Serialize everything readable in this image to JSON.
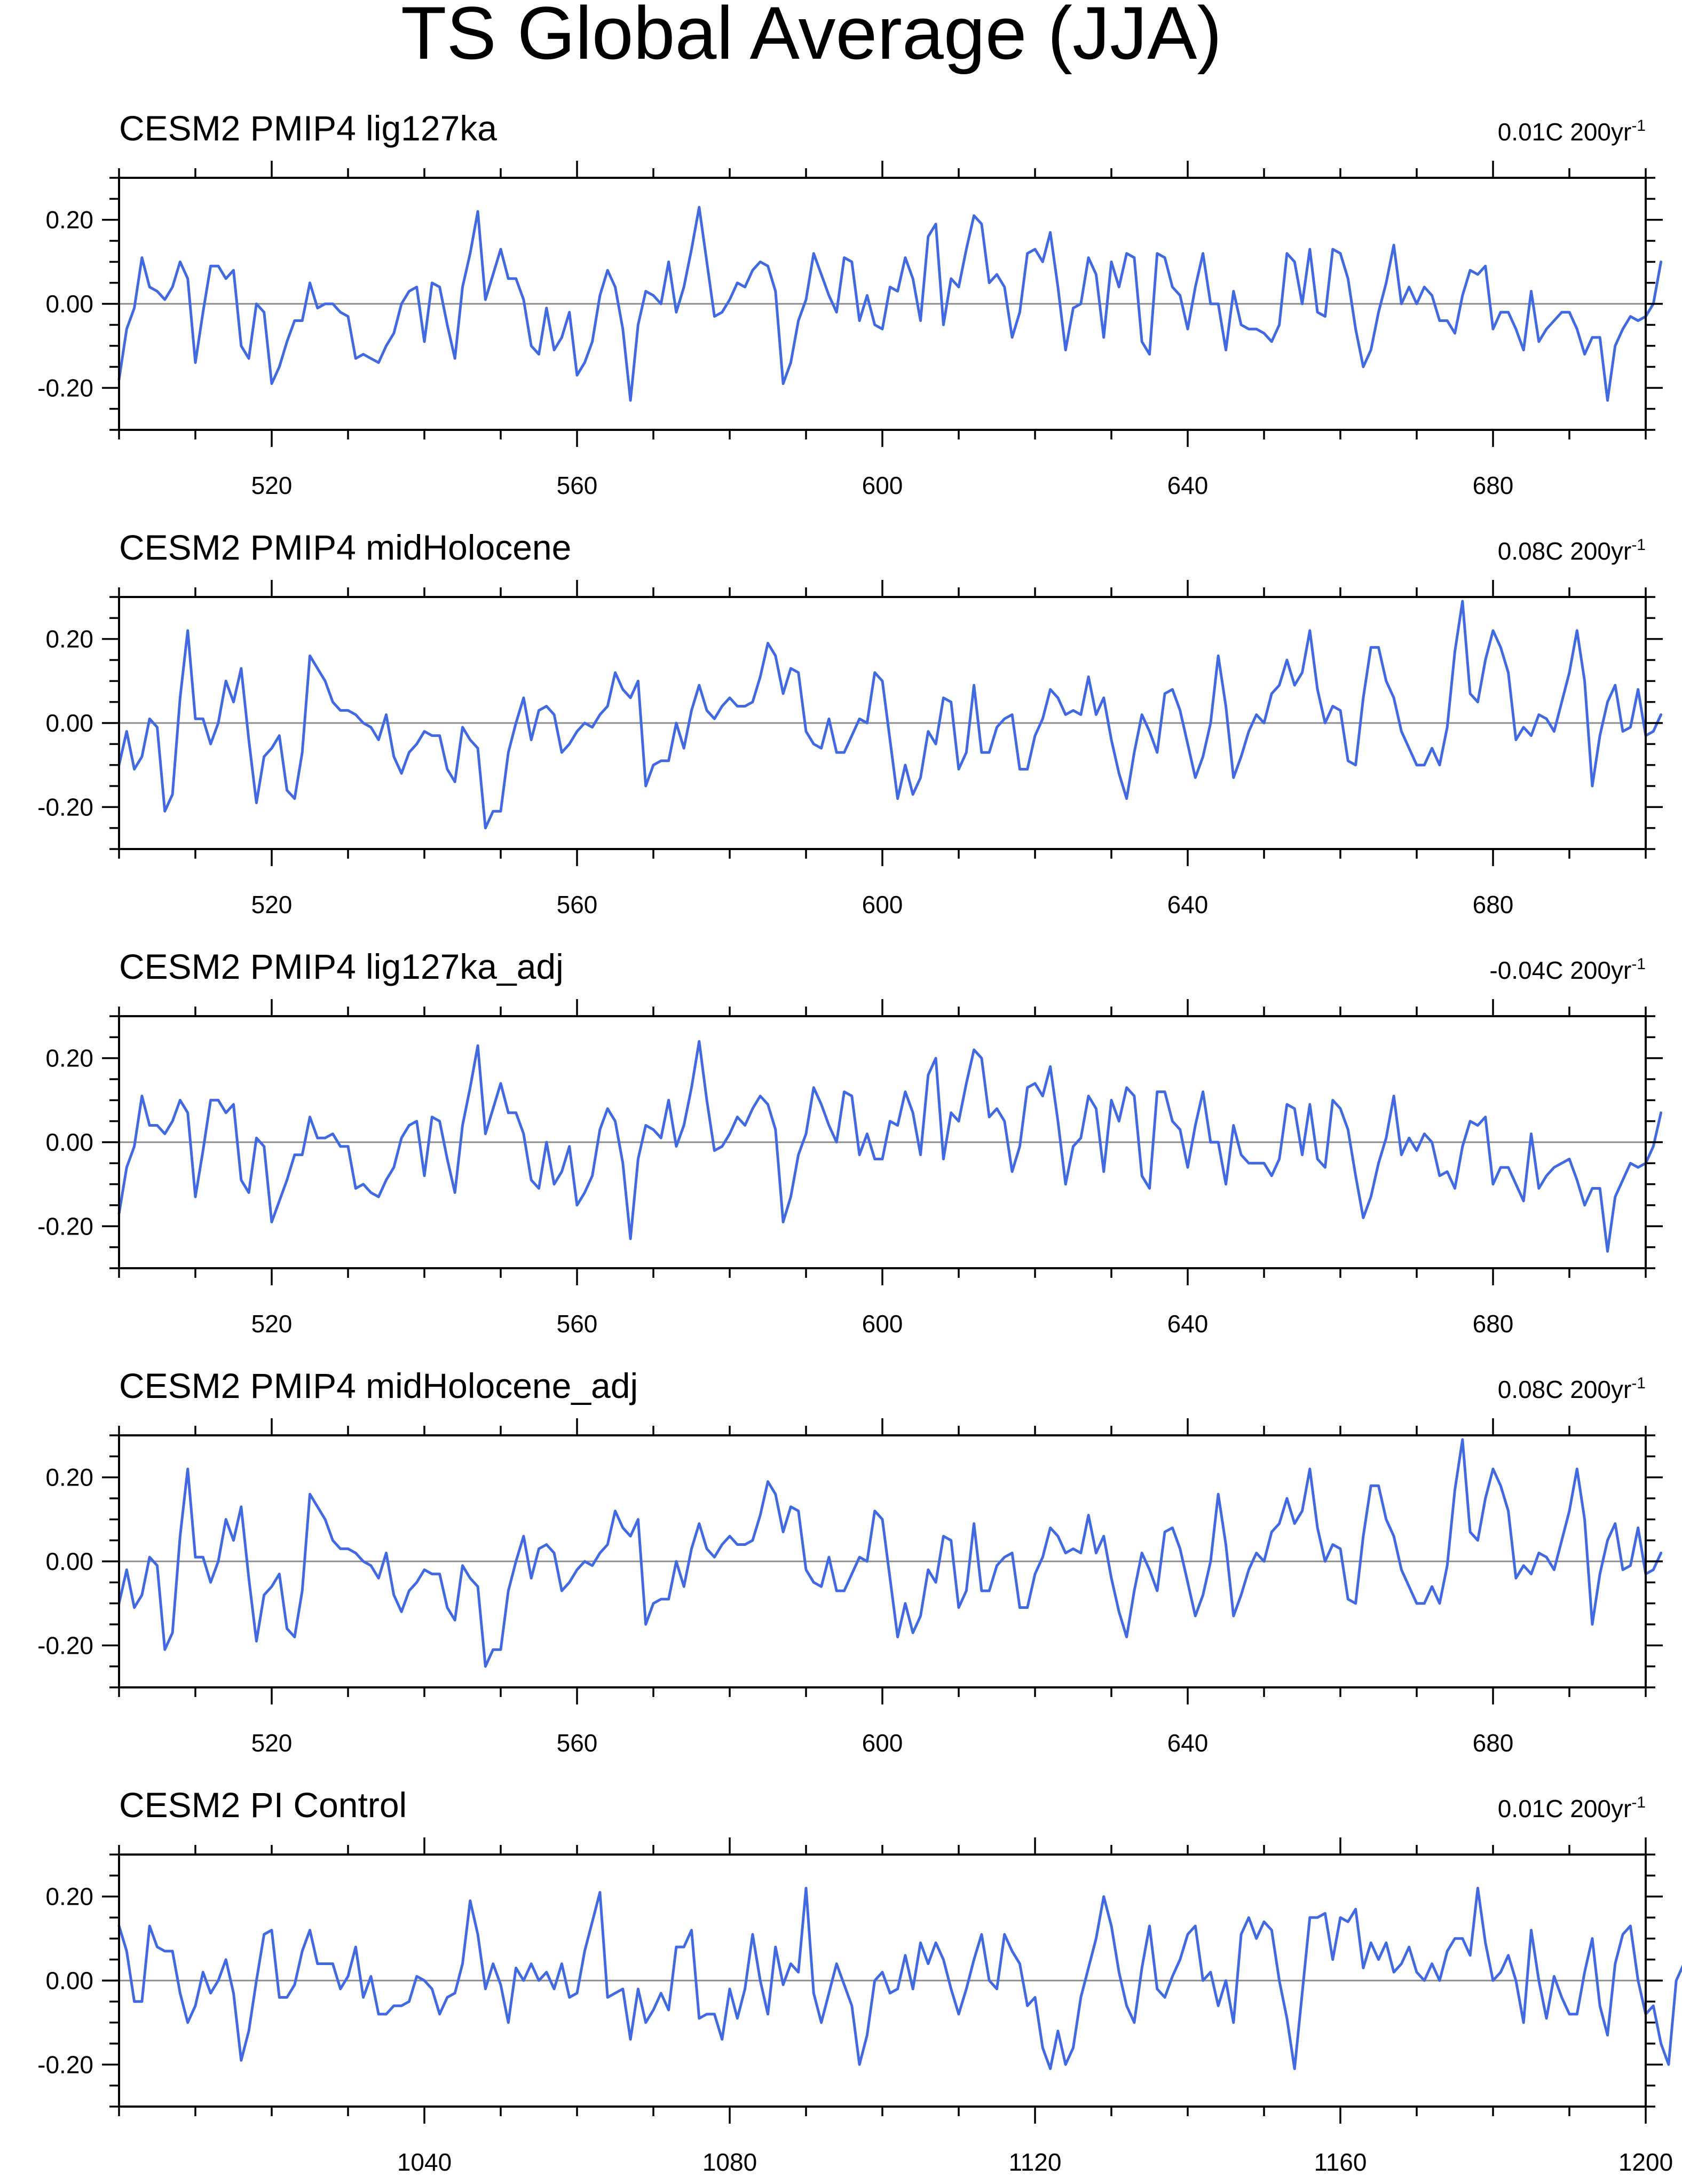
{
  "figure": {
    "title": "TS Global Average (JJA)"
  },
  "style": {
    "line_color": "#4169e1",
    "zero_line_color": "#8c8c8c"
  },
  "chart_data": [
    {
      "type": "line",
      "title": "CESM2 PMIP4 lig127ka",
      "trend_label": "0.01C 200yr",
      "trend_superscript": "-1",
      "xlim": [
        500,
        700
      ],
      "ylim": [
        -0.3,
        0.3
      ],
      "x_ticks": [
        520,
        560,
        600,
        640,
        680
      ],
      "y_ticks": [
        -0.2,
        0.0,
        0.2
      ],
      "y_tick_labels": [
        "-0.20",
        "0.00",
        "0.20"
      ],
      "x": {
        "start": 500,
        "step": 1,
        "count": 201
      },
      "values": [
        -0.18,
        -0.06,
        -0.01,
        0.11,
        0.04,
        0.03,
        0.01,
        0.04,
        0.1,
        0.06,
        -0.14,
        -0.02,
        0.09,
        0.09,
        0.06,
        0.08,
        -0.1,
        -0.13,
        0.0,
        -0.02,
        -0.19,
        -0.15,
        -0.09,
        -0.04,
        -0.04,
        0.05,
        -0.01,
        0.0,
        0.0,
        -0.02,
        -0.03,
        -0.13,
        -0.12,
        -0.13,
        -0.14,
        -0.1,
        -0.07,
        0.0,
        0.03,
        0.04,
        -0.09,
        0.05,
        0.04,
        -0.05,
        -0.13,
        0.04,
        0.12,
        0.22,
        0.01,
        0.07,
        0.13,
        0.06,
        0.06,
        0.01,
        -0.1,
        -0.12,
        -0.01,
        -0.11,
        -0.08,
        -0.02,
        -0.17,
        -0.14,
        -0.09,
        0.02,
        0.08,
        0.04,
        -0.06,
        -0.23,
        -0.05,
        0.03,
        0.02,
        0.0,
        0.1,
        -0.02,
        0.04,
        0.13,
        0.23,
        0.1,
        -0.03,
        -0.02,
        0.01,
        0.05,
        0.04,
        0.08,
        0.1,
        0.09,
        0.03,
        -0.19,
        -0.14,
        -0.04,
        0.01,
        0.12,
        0.07,
        0.02,
        -0.02,
        0.11,
        0.1,
        -0.04,
        0.02,
        -0.05,
        -0.06,
        0.04,
        0.03,
        0.11,
        0.06,
        -0.04,
        0.16,
        0.19,
        -0.05,
        0.06,
        0.04,
        0.13,
        0.21,
        0.19,
        0.05,
        0.07,
        0.04,
        -0.08,
        -0.02,
        0.12,
        0.13,
        0.1,
        0.17,
        0.04,
        -0.11,
        -0.01,
        0.0,
        0.11,
        0.07,
        -0.08,
        0.1,
        0.04,
        0.12,
        0.11,
        -0.09,
        -0.12,
        0.12,
        0.11,
        0.04,
        0.02,
        -0.06,
        0.04,
        0.12,
        0.0,
        0.0,
        -0.11,
        0.03,
        -0.05,
        -0.06,
        -0.06,
        -0.07,
        -0.09,
        -0.05,
        0.12,
        0.1,
        0.0,
        0.13,
        -0.02,
        -0.03,
        0.13,
        0.12,
        0.06,
        -0.06,
        -0.15,
        -0.11,
        -0.02,
        0.05,
        0.14,
        0.0,
        0.04,
        0.0,
        0.04,
        0.02,
        -0.04,
        -0.04,
        -0.07,
        0.02,
        0.08,
        0.07,
        0.09,
        -0.06,
        -0.02,
        -0.02,
        -0.06,
        -0.11,
        0.03,
        -0.09,
        -0.06,
        -0.04,
        -0.02,
        -0.02,
        -0.06,
        -0.12,
        -0.08,
        -0.08,
        -0.23,
        -0.1,
        -0.06,
        -0.03,
        -0.04,
        -0.03,
        0.0,
        0.1
      ],
      "grid": false,
      "legend": "none"
    },
    {
      "type": "line",
      "title": "CESM2 PMIP4 midHolocene",
      "trend_label": "0.08C 200yr",
      "trend_superscript": "-1",
      "xlim": [
        500,
        700
      ],
      "ylim": [
        -0.3,
        0.3
      ],
      "x_ticks": [
        520,
        560,
        600,
        640,
        680
      ],
      "y_ticks": [
        -0.2,
        0.0,
        0.2
      ],
      "y_tick_labels": [
        "-0.20",
        "0.00",
        "0.20"
      ],
      "x": {
        "start": 500,
        "step": 1,
        "count": 201
      },
      "values": [
        -0.1,
        -0.02,
        -0.11,
        -0.08,
        0.01,
        -0.01,
        -0.21,
        -0.17,
        0.06,
        0.22,
        0.01,
        0.01,
        -0.05,
        0.0,
        0.1,
        0.05,
        0.13,
        -0.04,
        -0.19,
        -0.08,
        -0.06,
        -0.03,
        -0.16,
        -0.18,
        -0.07,
        0.16,
        0.13,
        0.1,
        0.05,
        0.03,
        0.03,
        0.02,
        0.0,
        -0.01,
        -0.04,
        0.02,
        -0.08,
        -0.12,
        -0.07,
        -0.05,
        -0.02,
        -0.03,
        -0.03,
        -0.11,
        -0.14,
        -0.01,
        -0.04,
        -0.06,
        -0.25,
        -0.21,
        -0.21,
        -0.07,
        0.0,
        0.06,
        -0.04,
        0.03,
        0.04,
        0.02,
        -0.07,
        -0.05,
        -0.02,
        0.0,
        -0.01,
        0.02,
        0.04,
        0.12,
        0.08,
        0.06,
        0.1,
        -0.15,
        -0.1,
        -0.09,
        -0.09,
        0.0,
        -0.06,
        0.03,
        0.09,
        0.03,
        0.01,
        0.04,
        0.06,
        0.04,
        0.04,
        0.05,
        0.11,
        0.19,
        0.16,
        0.07,
        0.13,
        0.12,
        -0.02,
        -0.05,
        -0.06,
        0.01,
        -0.07,
        -0.07,
        -0.03,
        0.01,
        0.0,
        0.12,
        0.1,
        -0.04,
        -0.18,
        -0.1,
        -0.17,
        -0.13,
        -0.02,
        -0.05,
        0.06,
        0.05,
        -0.11,
        -0.07,
        0.09,
        -0.07,
        -0.07,
        -0.01,
        0.01,
        0.02,
        -0.11,
        -0.11,
        -0.03,
        0.01,
        0.08,
        0.06,
        0.02,
        0.03,
        0.02,
        0.11,
        0.02,
        0.06,
        -0.04,
        -0.12,
        -0.18,
        -0.07,
        0.02,
        -0.02,
        -0.07,
        0.07,
        0.08,
        0.03,
        -0.05,
        -0.13,
        -0.08,
        0.0,
        0.16,
        0.04,
        -0.13,
        -0.08,
        -0.02,
        0.02,
        0.0,
        0.07,
        0.09,
        0.15,
        0.09,
        0.12,
        0.22,
        0.08,
        0.0,
        0.04,
        0.03,
        -0.09,
        -0.1,
        0.06,
        0.18,
        0.18,
        0.1,
        0.06,
        -0.02,
        -0.06,
        -0.1,
        -0.1,
        -0.06,
        -0.1,
        -0.01,
        0.17,
        0.29,
        0.07,
        0.05,
        0.15,
        0.22,
        0.18,
        0.12,
        -0.04,
        -0.01,
        -0.03,
        0.02,
        0.01,
        -0.02,
        0.05,
        0.12,
        0.22,
        0.1,
        -0.15,
        -0.03,
        0.05,
        0.09,
        -0.02,
        -0.01,
        0.08,
        -0.03,
        -0.02,
        0.02
      ],
      "grid": false,
      "legend": "none"
    },
    {
      "type": "line",
      "title": "CESM2 PMIP4 lig127ka_adj",
      "trend_label": "-0.04C 200yr",
      "trend_superscript": "-1",
      "xlim": [
        500,
        700
      ],
      "ylim": [
        -0.3,
        0.3
      ],
      "x_ticks": [
        520,
        560,
        600,
        640,
        680
      ],
      "y_ticks": [
        -0.2,
        0.0,
        0.2
      ],
      "y_tick_labels": [
        "-0.20",
        "0.00",
        "0.20"
      ],
      "x": {
        "start": 500,
        "step": 1,
        "count": 201
      },
      "values": [
        -0.17,
        -0.06,
        -0.01,
        0.11,
        0.04,
        0.04,
        0.02,
        0.05,
        0.1,
        0.07,
        -0.13,
        -0.02,
        0.1,
        0.1,
        0.07,
        0.09,
        -0.09,
        -0.12,
        0.01,
        -0.01,
        -0.19,
        -0.14,
        -0.09,
        -0.03,
        -0.03,
        0.06,
        0.01,
        0.01,
        0.02,
        -0.01,
        -0.01,
        -0.11,
        -0.1,
        -0.12,
        -0.13,
        -0.09,
        -0.06,
        0.01,
        0.04,
        0.05,
        -0.08,
        0.06,
        0.05,
        -0.04,
        -0.12,
        0.04,
        0.13,
        0.23,
        0.02,
        0.08,
        0.14,
        0.07,
        0.07,
        0.02,
        -0.09,
        -0.11,
        0.0,
        -0.1,
        -0.07,
        -0.01,
        -0.15,
        -0.12,
        -0.08,
        0.03,
        0.08,
        0.05,
        -0.05,
        -0.23,
        -0.04,
        0.04,
        0.03,
        0.01,
        0.1,
        -0.01,
        0.04,
        0.13,
        0.24,
        0.1,
        -0.02,
        -0.01,
        0.02,
        0.06,
        0.04,
        0.08,
        0.11,
        0.09,
        0.03,
        -0.19,
        -0.13,
        -0.03,
        0.02,
        0.13,
        0.09,
        0.04,
        0.0,
        0.12,
        0.11,
        -0.03,
        0.02,
        -0.04,
        -0.04,
        0.05,
        0.04,
        0.12,
        0.07,
        -0.03,
        0.16,
        0.2,
        -0.04,
        0.07,
        0.05,
        0.14,
        0.22,
        0.2,
        0.06,
        0.08,
        0.05,
        -0.07,
        -0.01,
        0.13,
        0.14,
        0.11,
        0.18,
        0.05,
        -0.1,
        -0.01,
        0.01,
        0.11,
        0.08,
        -0.07,
        0.1,
        0.05,
        0.13,
        0.11,
        -0.08,
        -0.11,
        0.12,
        0.12,
        0.05,
        0.03,
        -0.06,
        0.04,
        0.12,
        0.0,
        0.0,
        -0.1,
        0.04,
        -0.03,
        -0.05,
        -0.05,
        -0.05,
        -0.08,
        -0.04,
        0.09,
        0.08,
        -0.03,
        0.09,
        -0.04,
        -0.06,
        0.1,
        0.08,
        0.03,
        -0.08,
        -0.18,
        -0.13,
        -0.05,
        0.01,
        0.11,
        -0.03,
        0.01,
        -0.02,
        0.02,
        0.0,
        -0.08,
        -0.07,
        -0.11,
        -0.01,
        0.05,
        0.04,
        0.06,
        -0.1,
        -0.06,
        -0.06,
        -0.1,
        -0.14,
        0.02,
        -0.11,
        -0.08,
        -0.06,
        -0.05,
        -0.04,
        -0.09,
        -0.15,
        -0.11,
        -0.11,
        -0.26,
        -0.13,
        -0.09,
        -0.05,
        -0.06,
        -0.05,
        -0.01,
        0.07
      ],
      "grid": false,
      "legend": "none"
    },
    {
      "type": "line",
      "title": "CESM2 PMIP4 midHolocene_adj",
      "trend_label": "0.08C 200yr",
      "trend_superscript": "-1",
      "xlim": [
        500,
        700
      ],
      "ylim": [
        -0.3,
        0.3
      ],
      "x_ticks": [
        520,
        560,
        600,
        640,
        680
      ],
      "y_ticks": [
        -0.2,
        0.0,
        0.2
      ],
      "y_tick_labels": [
        "-0.20",
        "0.00",
        "0.20"
      ],
      "x": {
        "start": 500,
        "step": 1,
        "count": 201
      },
      "values": [
        -0.1,
        -0.02,
        -0.11,
        -0.08,
        0.01,
        -0.01,
        -0.21,
        -0.17,
        0.06,
        0.22,
        0.01,
        0.01,
        -0.05,
        0.0,
        0.1,
        0.05,
        0.13,
        -0.04,
        -0.19,
        -0.08,
        -0.06,
        -0.03,
        -0.16,
        -0.18,
        -0.07,
        0.16,
        0.13,
        0.1,
        0.05,
        0.03,
        0.03,
        0.02,
        0.0,
        -0.01,
        -0.04,
        0.02,
        -0.08,
        -0.12,
        -0.07,
        -0.05,
        -0.02,
        -0.03,
        -0.03,
        -0.11,
        -0.14,
        -0.01,
        -0.04,
        -0.06,
        -0.25,
        -0.21,
        -0.21,
        -0.07,
        0.0,
        0.06,
        -0.04,
        0.03,
        0.04,
        0.02,
        -0.07,
        -0.05,
        -0.02,
        0.0,
        -0.01,
        0.02,
        0.04,
        0.12,
        0.08,
        0.06,
        0.1,
        -0.15,
        -0.1,
        -0.09,
        -0.09,
        0.0,
        -0.06,
        0.03,
        0.09,
        0.03,
        0.01,
        0.04,
        0.06,
        0.04,
        0.04,
        0.05,
        0.11,
        0.19,
        0.16,
        0.07,
        0.13,
        0.12,
        -0.02,
        -0.05,
        -0.06,
        0.01,
        -0.07,
        -0.07,
        -0.03,
        0.01,
        0.0,
        0.12,
        0.1,
        -0.04,
        -0.18,
        -0.1,
        -0.17,
        -0.13,
        -0.02,
        -0.05,
        0.06,
        0.05,
        -0.11,
        -0.07,
        0.09,
        -0.07,
        -0.07,
        -0.01,
        0.01,
        0.02,
        -0.11,
        -0.11,
        -0.03,
        0.01,
        0.08,
        0.06,
        0.02,
        0.03,
        0.02,
        0.11,
        0.02,
        0.06,
        -0.04,
        -0.12,
        -0.18,
        -0.07,
        0.02,
        -0.02,
        -0.07,
        0.07,
        0.08,
        0.03,
        -0.05,
        -0.13,
        -0.08,
        0.0,
        0.16,
        0.04,
        -0.13,
        -0.08,
        -0.02,
        0.02,
        0.0,
        0.07,
        0.09,
        0.15,
        0.09,
        0.12,
        0.22,
        0.08,
        0.0,
        0.04,
        0.03,
        -0.09,
        -0.1,
        0.06,
        0.18,
        0.18,
        0.1,
        0.06,
        -0.02,
        -0.06,
        -0.1,
        -0.1,
        -0.06,
        -0.1,
        -0.01,
        0.17,
        0.29,
        0.07,
        0.05,
        0.15,
        0.22,
        0.18,
        0.12,
        -0.04,
        -0.01,
        -0.03,
        0.02,
        0.01,
        -0.02,
        0.05,
        0.12,
        0.22,
        0.1,
        -0.15,
        -0.03,
        0.05,
        0.09,
        -0.02,
        -0.01,
        0.08,
        -0.03,
        -0.02,
        0.02
      ],
      "grid": false,
      "legend": "none"
    },
    {
      "type": "line",
      "title": "CESM2 PI Control",
      "trend_label": "0.01C 200yr",
      "trend_superscript": "-1",
      "xlim": [
        1000,
        1200
      ],
      "ylim": [
        -0.3,
        0.3
      ],
      "x_ticks": [
        1040,
        1080,
        1120,
        1160,
        1200
      ],
      "y_ticks": [
        -0.2,
        0.0,
        0.2
      ],
      "y_tick_labels": [
        "-0.20",
        "0.00",
        "0.20"
      ],
      "x": {
        "start": 1000,
        "step": 1,
        "count": 201
      },
      "values": [
        0.13,
        0.07,
        -0.05,
        -0.05,
        0.13,
        0.08,
        0.07,
        0.07,
        -0.03,
        -0.1,
        -0.06,
        0.02,
        -0.03,
        0.0,
        0.05,
        -0.03,
        -0.19,
        -0.12,
        0.0,
        0.11,
        0.12,
        -0.04,
        -0.04,
        -0.01,
        0.07,
        0.12,
        0.04,
        0.04,
        0.04,
        -0.02,
        0.01,
        0.08,
        -0.04,
        0.01,
        -0.08,
        -0.08,
        -0.06,
        -0.06,
        -0.05,
        0.01,
        0.0,
        -0.02,
        -0.08,
        -0.04,
        -0.03,
        0.04,
        0.19,
        0.11,
        -0.02,
        0.04,
        -0.01,
        -0.1,
        0.03,
        0.0,
        0.04,
        0.0,
        0.02,
        -0.02,
        0.04,
        -0.04,
        -0.03,
        0.07,
        0.14,
        0.21,
        -0.04,
        -0.03,
        -0.02,
        -0.14,
        -0.02,
        -0.1,
        -0.07,
        -0.03,
        -0.07,
        0.08,
        0.08,
        0.12,
        -0.09,
        -0.08,
        -0.08,
        -0.14,
        -0.02,
        -0.09,
        -0.02,
        0.11,
        0.0,
        -0.08,
        0.08,
        -0.01,
        0.04,
        0.02,
        0.22,
        -0.03,
        -0.1,
        -0.03,
        0.04,
        -0.01,
        -0.06,
        -0.2,
        -0.13,
        0.0,
        0.02,
        -0.03,
        -0.02,
        0.06,
        -0.02,
        0.09,
        0.04,
        0.09,
        0.05,
        -0.02,
        -0.08,
        -0.02,
        0.05,
        0.11,
        0.0,
        -0.02,
        0.11,
        0.07,
        0.04,
        -0.06,
        -0.04,
        -0.16,
        -0.21,
        -0.12,
        -0.2,
        -0.16,
        -0.04,
        0.03,
        0.1,
        0.2,
        0.13,
        0.02,
        -0.06,
        -0.1,
        0.03,
        0.13,
        -0.02,
        -0.04,
        0.01,
        0.05,
        0.11,
        0.13,
        0.0,
        0.02,
        -0.06,
        0.0,
        -0.1,
        0.11,
        0.15,
        0.1,
        0.14,
        0.12,
        0.0,
        -0.09,
        -0.21,
        -0.03,
        0.15,
        0.15,
        0.16,
        0.05,
        0.15,
        0.14,
        0.17,
        0.03,
        0.09,
        0.05,
        0.09,
        0.02,
        0.04,
        0.08,
        0.02,
        0.0,
        0.04,
        0.0,
        0.07,
        0.1,
        0.1,
        0.06,
        0.22,
        0.09,
        0.0,
        0.02,
        0.06,
        0.0,
        -0.1,
        0.12,
        0.0,
        -0.09,
        0.01,
        -0.04,
        -0.08,
        -0.08,
        0.02,
        0.1,
        -0.06,
        -0.13,
        0.04,
        0.11,
        0.13,
        0.0,
        -0.08,
        -0.06,
        -0.15,
        -0.2,
        0.0,
        0.04
      ],
      "grid": false,
      "legend": "none"
    }
  ]
}
